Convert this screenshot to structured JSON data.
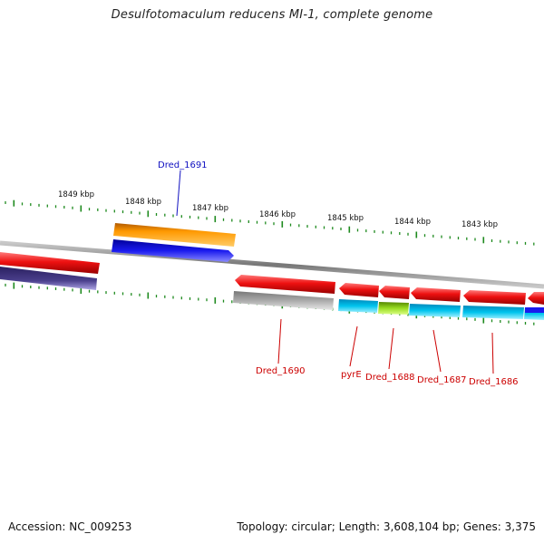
{
  "title": "Desulfotomaculum reducens MI-1, complete genome",
  "accession": "Accession: NC_009253",
  "topology": "Topology: circular; Length: 3,608,104 bp; Genes: 3,375",
  "scale_labels": [
    "1849 kbp",
    "1848 kbp",
    "1847 kbp",
    "1846 kbp",
    "1845 kbp",
    "1844 kbp",
    "1843 kbp"
  ],
  "gene_labels": [
    {
      "text": "Dred_1691",
      "strand": "forward"
    },
    {
      "text": "Dred_1690",
      "strand": "reverse"
    },
    {
      "text": "pyrE",
      "strand": "reverse"
    },
    {
      "text": "Dred_1688",
      "strand": "reverse"
    },
    {
      "text": "Dred_1687",
      "strand": "reverse"
    },
    {
      "text": "Dred_1686",
      "strand": "reverse"
    }
  ],
  "colors": {
    "forward_label": "#1010c0",
    "reverse_label": "#cc0000",
    "backbone": "#888888",
    "ticks": "#1e8a1e",
    "gene_red": "#ee1111",
    "gene_orange": "#ff9900",
    "gene_blue": "#1a1aee",
    "gene_navy": "#4a3f8c",
    "gene_gray": "#aaaaaa",
    "gene_cyan": "#00c4ee",
    "gene_yellowgreen": "#99dd22"
  }
}
